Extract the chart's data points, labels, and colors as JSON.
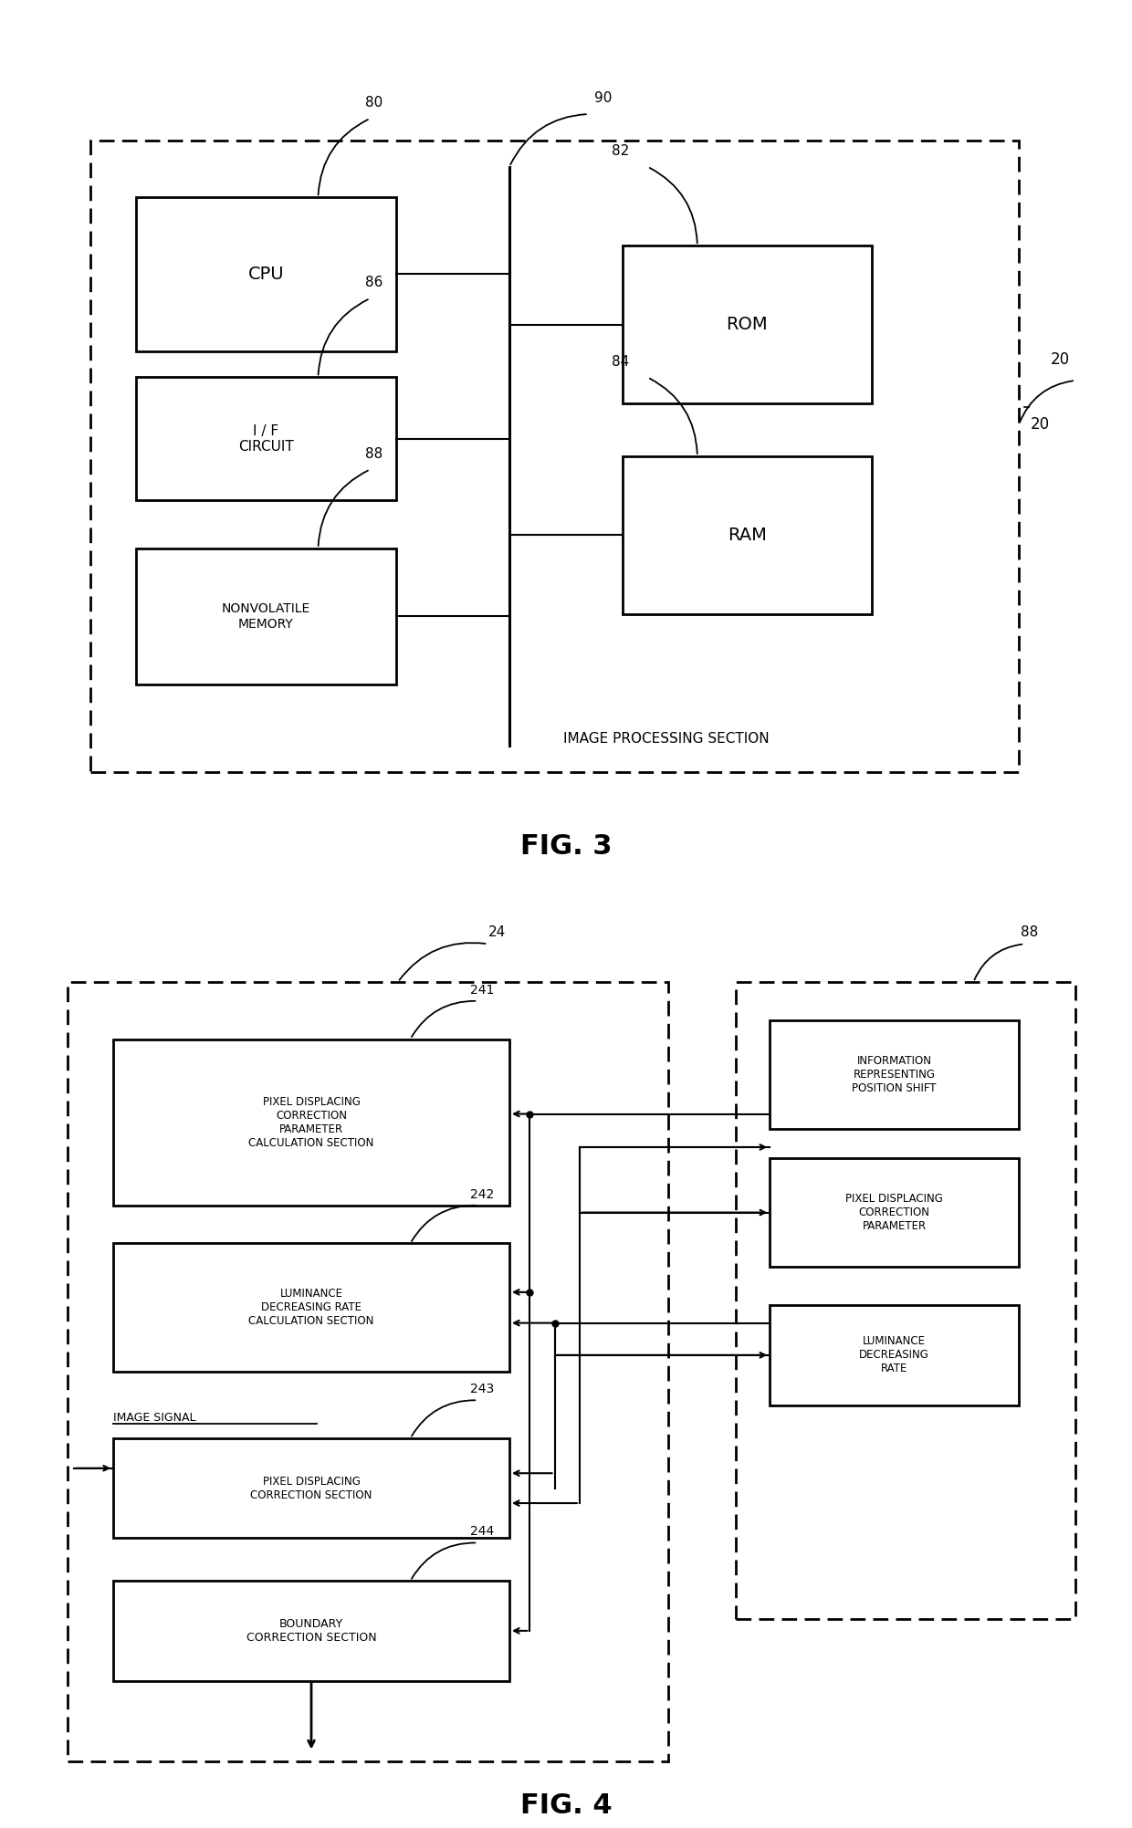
{
  "fig_width": 12.4,
  "fig_height": 20.03,
  "bg_color": "#ffffff",
  "lc": "#000000",
  "fig3": {
    "title": "FIG. 3",
    "outer_ref": "20",
    "bus_ref": "90",
    "cpu_label": "CPU",
    "cpu_ref": "80",
    "if_label": "I / F\nCIRCUIT",
    "if_ref": "86",
    "nvm_label": "NONVOLATILE\nMEMORY",
    "nvm_ref": "88",
    "rom_label": "ROM",
    "rom_ref": "82",
    "ram_label": "RAM",
    "ram_ref": "84",
    "section_label": "IMAGE PROCESSING SECTION"
  },
  "fig4": {
    "title": "FIG. 4",
    "left_ref": "24",
    "right_ref": "88",
    "b241_label": "PIXEL DISPLACING\nCORRECTION\nPARAMETER\nCALCULATION SECTION",
    "b241_ref": "241",
    "b242_label": "LUMINANCE\nDECREASING RATE\nCALCULATION SECTION",
    "b242_ref": "242",
    "b243_label": "PIXEL DISPLACING\nCORRECTION SECTION",
    "b243_ref": "243",
    "b244_label": "BOUNDARY\nCORRECTION SECTION",
    "b244_ref": "244",
    "r1_label": "INFORMATION\nREPRESENTING\nPOSITION SHIFT",
    "r2_label": "PIXEL DISPLACING\nCORRECTION\nPARAMETER",
    "r3_label": "LUMINANCE\nDECREASING\nRATE",
    "img_sig_label": "IMAGE SIGNAL"
  }
}
